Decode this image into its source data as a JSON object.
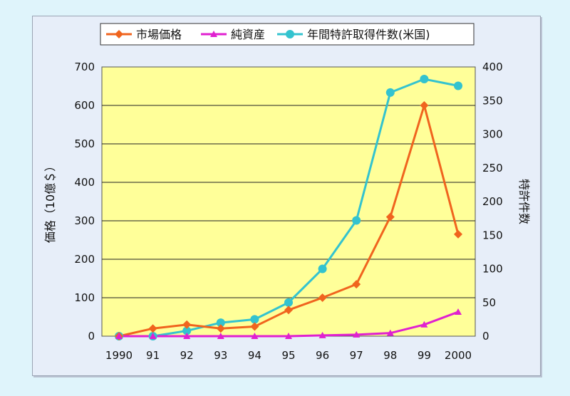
{
  "chart_data": {
    "type": "line",
    "x": [
      "1990",
      "91",
      "92",
      "93",
      "94",
      "95",
      "96",
      "97",
      "98",
      "99",
      "2000"
    ],
    "y_left_label": "価格（10億＄）",
    "y_right_label": "特許件数",
    "ylim_left": [
      0,
      700
    ],
    "ylim_right": [
      0,
      400
    ],
    "yticks_left": [
      0,
      100,
      200,
      300,
      400,
      500,
      600,
      700
    ],
    "yticks_right": [
      0,
      50,
      100,
      150,
      200,
      250,
      300,
      350,
      400
    ],
    "grid": true,
    "plot_background": "#ffff99",
    "legend_position": "top",
    "series": [
      {
        "name": "市場価格",
        "axis": "left",
        "color": "#f0641e",
        "marker": "diamond",
        "values": [
          0,
          20,
          30,
          20,
          25,
          68,
          100,
          135,
          310,
          600,
          265
        ]
      },
      {
        "name": "純資産",
        "axis": "left",
        "color": "#e020d0",
        "marker": "triangle",
        "values": [
          0,
          0,
          0,
          0,
          0,
          0,
          2,
          4,
          8,
          30,
          63
        ]
      },
      {
        "name": "年間特許取得件数(米国)",
        "axis": "right",
        "color": "#33c3cf",
        "marker": "circle",
        "values": [
          0,
          0,
          8,
          20,
          25,
          50,
          100,
          172,
          362,
          382,
          372
        ]
      }
    ]
  }
}
